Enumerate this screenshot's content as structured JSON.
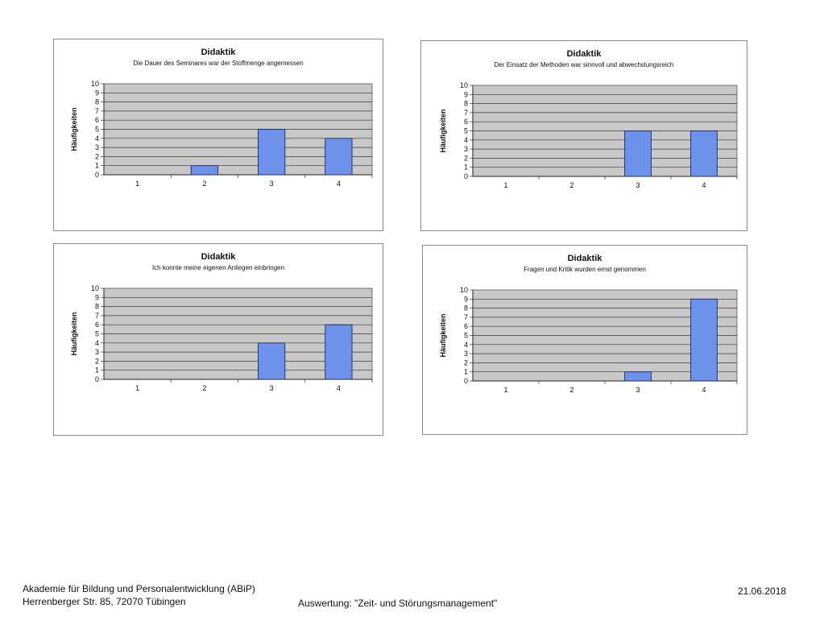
{
  "footer": {
    "org": "Akademie für Bildung und Personalentwicklung (ABiP)",
    "address": "Herrenberger Str. 85, 72070 Tübingen",
    "evaluation": "Auswertung: \"Zeit- und Störungsmanagement\"",
    "date": "21.06.2018"
  },
  "colors": {
    "plot_bg": "#c8c8c8",
    "bar": "#6d92ec",
    "bar_stroke": "#1e2a55",
    "grid": "#3a3a3a"
  },
  "chart_data": [
    {
      "type": "bar",
      "title": "Didaktik",
      "subtitle": "Die Dauer des Seminares war der Stoffmenge angemessen",
      "xlabel": "",
      "ylabel": "Häufigkeiten",
      "categories": [
        "1",
        "2",
        "3",
        "4"
      ],
      "values": [
        0,
        1,
        5,
        4
      ],
      "ylim": [
        0,
        10
      ],
      "yticks": [
        "0",
        "1",
        "2",
        "3",
        "4",
        "5",
        "6",
        "7",
        "8",
        "9",
        "10"
      ],
      "grid": true
    },
    {
      "type": "bar",
      "title": "Didaktik",
      "subtitle": "Der Einsatz der Methoden war sinnvoll und abwechslungsreich",
      "xlabel": "",
      "ylabel": "Häufigkeiten",
      "categories": [
        "1",
        "2",
        "3",
        "4"
      ],
      "values": [
        0,
        0,
        5,
        5
      ],
      "ylim": [
        0,
        10
      ],
      "yticks": [
        "0",
        "1",
        "2",
        "3",
        "4",
        "5",
        "6",
        "7",
        "8",
        "9",
        "10"
      ],
      "grid": true
    },
    {
      "type": "bar",
      "title": "Didaktik",
      "subtitle": "Ich konnte meine eigenen Anliegen einbringen",
      "xlabel": "",
      "ylabel": "Häufigkeiten",
      "categories": [
        "1",
        "2",
        "3",
        "4"
      ],
      "values": [
        0,
        0,
        4,
        6
      ],
      "ylim": [
        0,
        10
      ],
      "yticks": [
        "0",
        "1",
        "2",
        "3",
        "4",
        "5",
        "6",
        "7",
        "8",
        "9",
        "10"
      ],
      "grid": true
    },
    {
      "type": "bar",
      "title": "Didaktik",
      "subtitle": "Fragen und Kritik wurden ernst genommen",
      "xlabel": "",
      "ylabel": "Häufigkeiten",
      "categories": [
        "1",
        "2",
        "3",
        "4"
      ],
      "values": [
        0,
        0,
        1,
        9
      ],
      "ylim": [
        0,
        10
      ],
      "yticks": [
        "0",
        "1",
        "2",
        "3",
        "4",
        "5",
        "6",
        "7",
        "8",
        "9",
        "10"
      ],
      "grid": true
    }
  ]
}
